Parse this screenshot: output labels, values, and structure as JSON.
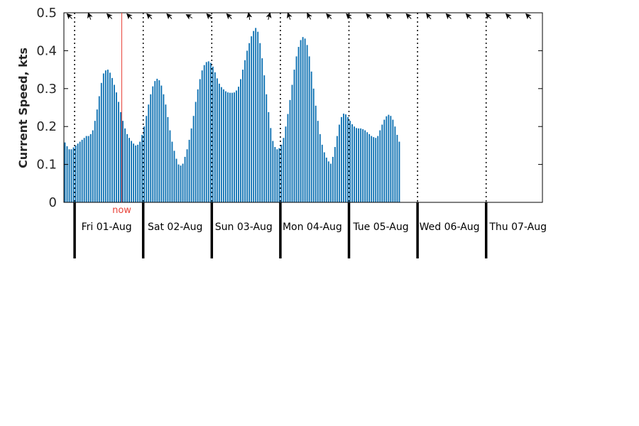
{
  "chart_data": {
    "type": "bar",
    "ylabel": "Current Speed, kts",
    "ylim": [
      0,
      0.5
    ],
    "yticks": [
      0,
      0.1,
      0.2,
      0.3,
      0.4,
      0.5
    ],
    "ytick_labels": [
      "0",
      "0.1",
      "0.2",
      "0.3",
      "0.4",
      "0.5"
    ],
    "x_start": "Thu 31-Jul 20:15",
    "x_step_minutes": 45,
    "day_labels": [
      "Fri 01-Aug",
      "Sat 02-Aug",
      "Sun 03-Aug",
      "Mon 04-Aug",
      "Tue 05-Aug",
      "Wed 06-Aug",
      "Thu 07-Aug"
    ],
    "now_label": "now",
    "now_position_hours": 20.25,
    "values": [
      0.158,
      0.148,
      0.14,
      0.14,
      0.145,
      0.15,
      0.155,
      0.16,
      0.165,
      0.17,
      0.175,
      0.175,
      0.18,
      0.19,
      0.215,
      0.245,
      0.28,
      0.315,
      0.34,
      0.348,
      0.35,
      0.342,
      0.328,
      0.31,
      0.29,
      0.265,
      0.238,
      0.215,
      0.195,
      0.18,
      0.17,
      0.162,
      0.155,
      0.15,
      0.152,
      0.16,
      0.178,
      0.2,
      0.228,
      0.258,
      0.285,
      0.306,
      0.32,
      0.326,
      0.322,
      0.308,
      0.285,
      0.258,
      0.225,
      0.19,
      0.16,
      0.136,
      0.115,
      0.1,
      0.097,
      0.102,
      0.12,
      0.14,
      0.165,
      0.195,
      0.228,
      0.265,
      0.298,
      0.325,
      0.348,
      0.362,
      0.37,
      0.372,
      0.368,
      0.358,
      0.343,
      0.327,
      0.313,
      0.304,
      0.298,
      0.293,
      0.29,
      0.289,
      0.289,
      0.29,
      0.295,
      0.305,
      0.325,
      0.35,
      0.375,
      0.4,
      0.42,
      0.438,
      0.452,
      0.46,
      0.45,
      0.42,
      0.38,
      0.335,
      0.285,
      0.238,
      0.196,
      0.162,
      0.146,
      0.14,
      0.143,
      0.152,
      0.17,
      0.2,
      0.233,
      0.27,
      0.31,
      0.35,
      0.385,
      0.41,
      0.428,
      0.436,
      0.432,
      0.415,
      0.385,
      0.345,
      0.3,
      0.255,
      0.215,
      0.18,
      0.152,
      0.132,
      0.118,
      0.108,
      0.102,
      0.12,
      0.146,
      0.175,
      0.205,
      0.225,
      0.234,
      0.232,
      0.225,
      0.215,
      0.206,
      0.2,
      0.196,
      0.195,
      0.195,
      0.193,
      0.19,
      0.185,
      0.18,
      0.175,
      0.172,
      0.17,
      0.175,
      0.19,
      0.205,
      0.218,
      0.227,
      0.231,
      0.228,
      0.218,
      0.2,
      0.178,
      0.16
    ],
    "direction_arrows": 24,
    "grid": false
  }
}
